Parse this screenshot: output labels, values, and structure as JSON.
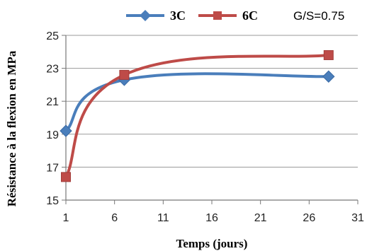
{
  "chart_data": {
    "type": "line",
    "xlabel": "Temps (jours)",
    "ylabel": "Résistance à la flexion en MPa",
    "annotation": "G/S=0.75",
    "xlim": [
      1,
      31
    ],
    "ylim": [
      15,
      25
    ],
    "x_ticks": [
      "1",
      "6",
      "11",
      "16",
      "21",
      "26",
      "31"
    ],
    "y_ticks": [
      "15",
      "17",
      "19",
      "21",
      "23",
      "25"
    ],
    "grid": true,
    "legend_position": "top",
    "series": [
      {
        "name": "3C",
        "color": "#4a7ebb",
        "marker": "diamond",
        "x": [
          1,
          7,
          28
        ],
        "y": [
          19.2,
          22.3,
          22.5
        ]
      },
      {
        "name": "6C",
        "color": "#be4b48",
        "marker": "square",
        "x": [
          1,
          7,
          28
        ],
        "y": [
          16.4,
          22.6,
          23.8
        ]
      }
    ]
  }
}
